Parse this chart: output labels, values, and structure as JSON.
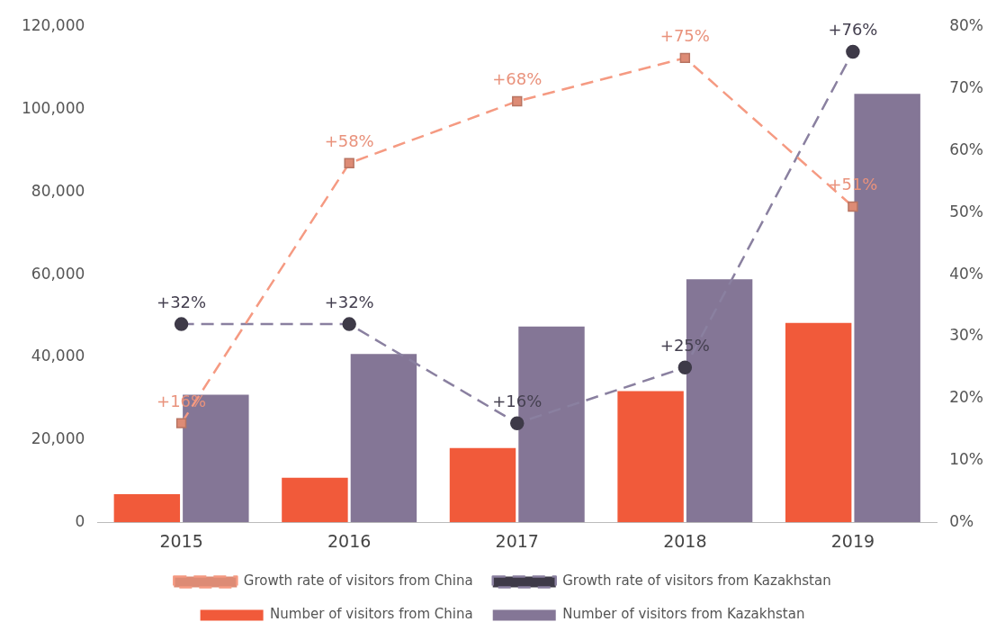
{
  "chart_data": {
    "type": "bar",
    "categories": [
      "2015",
      "2016",
      "2017",
      "2018",
      "2019"
    ],
    "series": [
      {
        "name": "Number of visitors from China",
        "color": "#f15a3a",
        "values": [
          6800,
          10800,
          18000,
          31800,
          48300
        ]
      },
      {
        "name": "Number of visitors from Kazakhstan",
        "color": "#847696",
        "values": [
          30900,
          40800,
          47400,
          58900,
          103800
        ]
      },
      {
        "name": "Growth rate of visitors from China",
        "type": "line",
        "axis": "y2",
        "color": "#f59a82",
        "marker": "square",
        "line_style": "dashed",
        "values": [
          16,
          58,
          68,
          75,
          51
        ],
        "value_labels": [
          "+16%",
          "+58%",
          "+68%",
          "+75%",
          "+51%"
        ]
      },
      {
        "name": "Growth rate of visitors from Kazakhstan",
        "type": "line",
        "axis": "y2",
        "color": "#8a80a0",
        "marker": "circle",
        "line_style": "dashed",
        "values": [
          32,
          32,
          16,
          25,
          76
        ],
        "value_labels": [
          "+32%",
          "+32%",
          "+16%",
          "+25%",
          "+76%"
        ]
      }
    ],
    "ylim": [
      0,
      120000
    ],
    "yticks": [
      {
        "value": 0,
        "label": "0"
      },
      {
        "value": 20000,
        "label": "20,000"
      },
      {
        "value": 40000,
        "label": "40,000"
      },
      {
        "value": 60000,
        "label": "60,000"
      },
      {
        "value": 80000,
        "label": "80,000"
      },
      {
        "value": 100000,
        "label": "100,000"
      },
      {
        "value": 120000,
        "label": "120,000"
      }
    ],
    "y2lim": [
      0,
      80
    ],
    "y2ticks": [
      {
        "value": 0,
        "label": "0%"
      },
      {
        "value": 10,
        "label": "10%"
      },
      {
        "value": 20,
        "label": "20%"
      },
      {
        "value": 30,
        "label": "30%"
      },
      {
        "value": 40,
        "label": "40%"
      },
      {
        "value": 50,
        "label": "50%"
      },
      {
        "value": 60,
        "label": "60%"
      },
      {
        "value": 70,
        "label": "70%"
      },
      {
        "value": 80,
        "label": "80%"
      }
    ],
    "grid": false,
    "legend": "bottom"
  }
}
